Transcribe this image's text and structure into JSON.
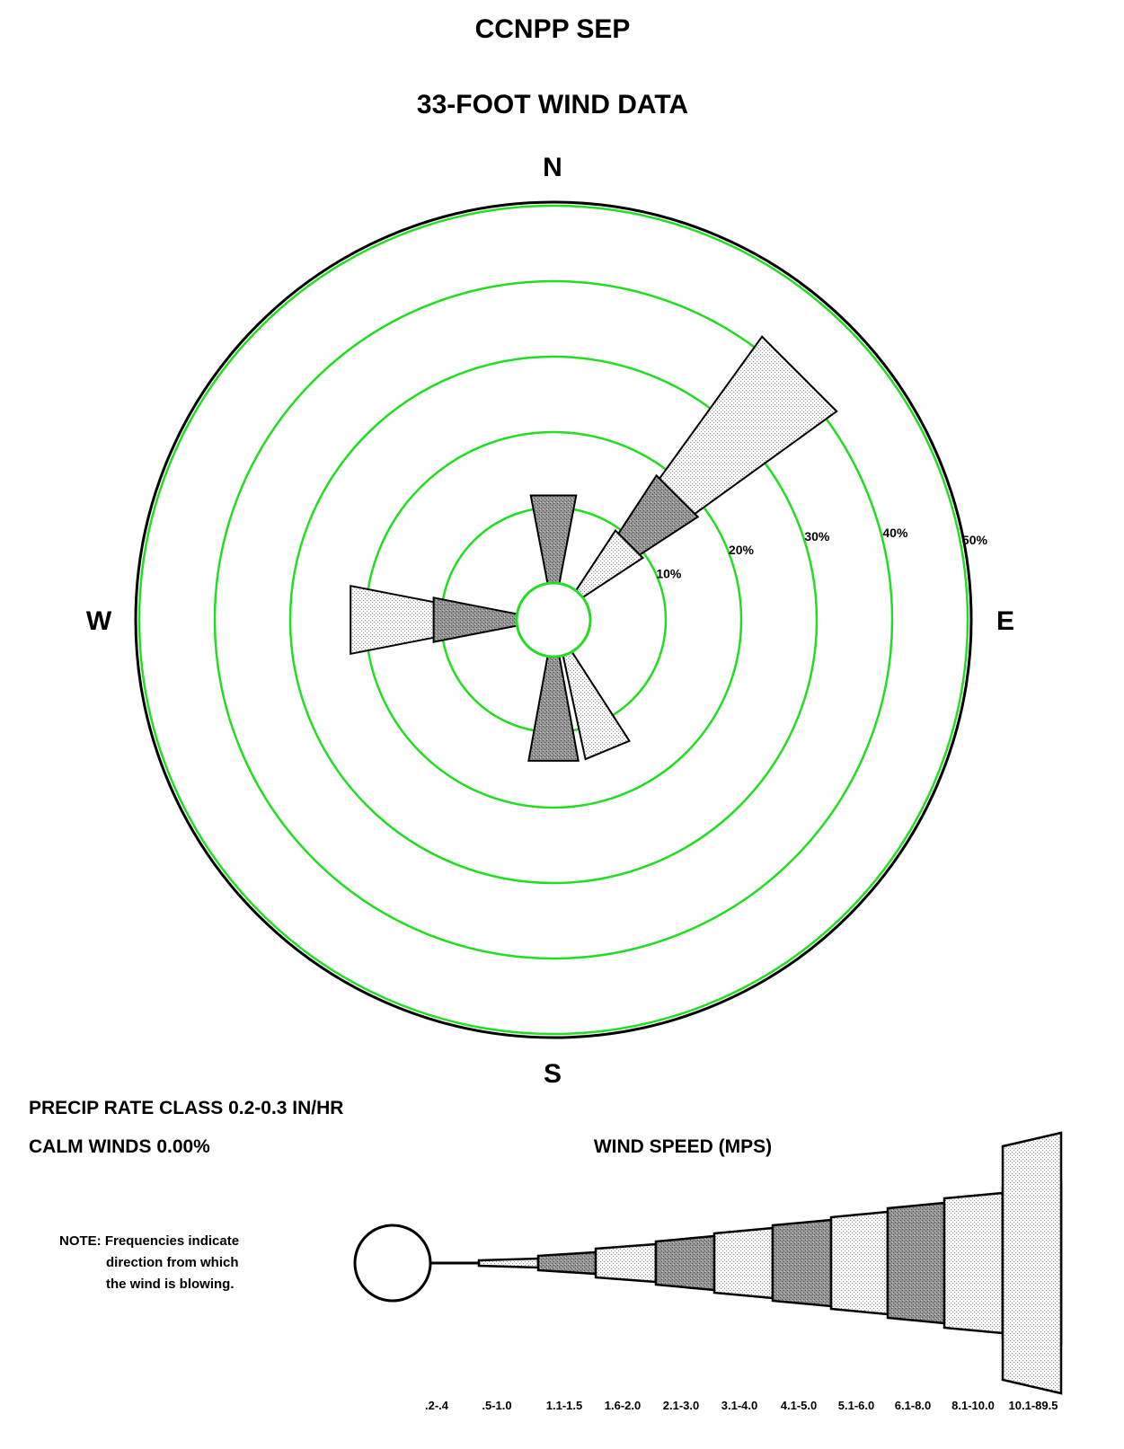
{
  "chart_data": {
    "type": "wind-rose",
    "title": "CCNPP SEP",
    "subtitle": "33-FOOT WIND DATA",
    "compass": {
      "north": "N",
      "east": "E",
      "south": "S",
      "west": "W"
    },
    "radial_axis": {
      "rings": [
        10,
        20,
        30,
        40,
        50
      ],
      "ring_labels": [
        "10%",
        "20%",
        "30%",
        "40%",
        "50%"
      ],
      "max": 50
    },
    "speed_classes": [
      ".2-.4",
      ".5-1.0",
      "1.1-1.5",
      "1.6-2.0",
      "2.1-3.0",
      "3.1-4.0",
      "4.1-5.0",
      "5.1-6.0",
      "6.1-8.0",
      "8.1-10.0",
      "10.1-89.5"
    ],
    "directions": [
      {
        "direction": "N",
        "segments": [
          {
            "speed_class": "1.6-2.0",
            "percent": 11.6
          }
        ]
      },
      {
        "direction": "NE",
        "segments": [
          {
            "speed_class": "1.1-1.5",
            "percent": 9.3
          },
          {
            "speed_class": "1.6-2.0",
            "percent": 9.0
          },
          {
            "speed_class": "2.1-3.0",
            "percent": 22.9
          }
        ]
      },
      {
        "direction": "SSE",
        "segments": [
          {
            "speed_class": "1.1-1.5",
            "percent": 13.8
          }
        ]
      },
      {
        "direction": "S",
        "segments": [
          {
            "speed_class": "1.6-2.0",
            "percent": 13.8
          }
        ]
      },
      {
        "direction": "W",
        "segments": [
          {
            "speed_class": "1.6-2.0",
            "percent": 11.0
          },
          {
            "speed_class": "2.1-3.0",
            "percent": 11.0
          }
        ]
      }
    ],
    "precip_rate_class": "PRECIP RATE CLASS 0.2-0.3  IN/HR",
    "calm_winds": "CALM WINDS   0.00%",
    "legend_title": "WIND SPEED (MPS)",
    "note": [
      "NOTE:  Frequencies indicate",
      "direction from which",
      "the wind is blowing."
    ],
    "colors": {
      "rings": "#22dd22",
      "outline": "#000000",
      "light_fill": "#ececec",
      "dark_fill": "#8a8a8a"
    }
  }
}
